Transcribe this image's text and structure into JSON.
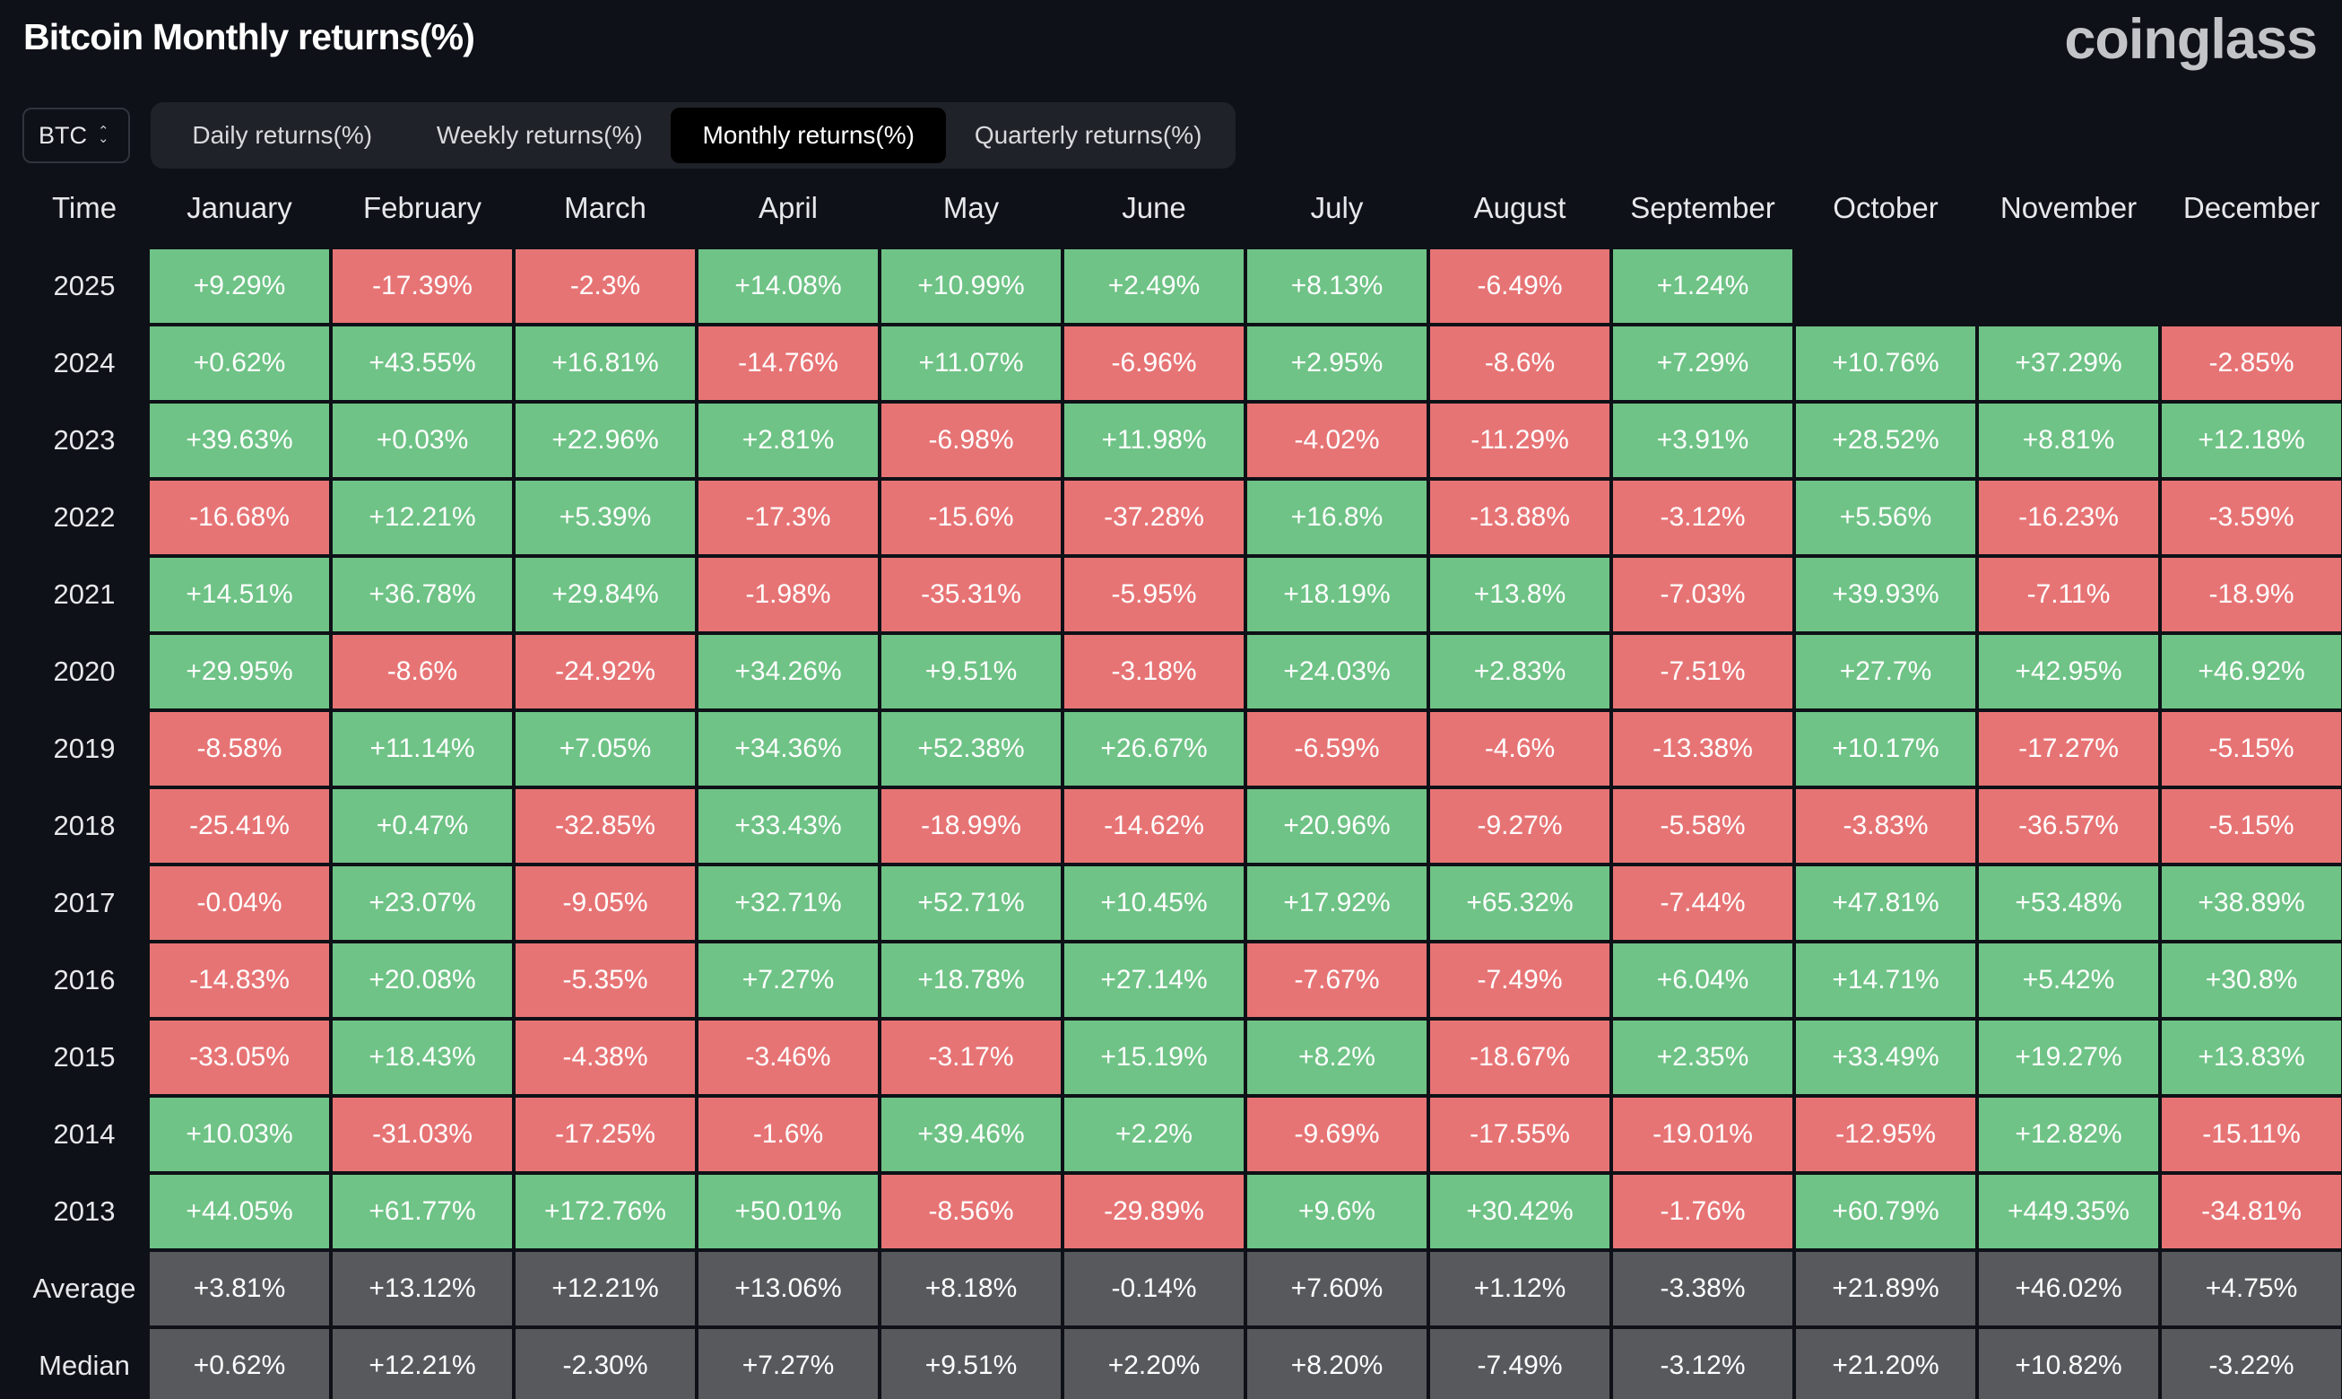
{
  "header": {
    "title": "Bitcoin Monthly returns(%)",
    "brand": "coinglass"
  },
  "coin_select": {
    "value": "BTC"
  },
  "tabs": [
    {
      "label": "Daily returns(%)",
      "active": false
    },
    {
      "label": "Weekly returns(%)",
      "active": false
    },
    {
      "label": "Monthly returns(%)",
      "active": true
    },
    {
      "label": "Quarterly returns(%)",
      "active": false
    }
  ],
  "colors": {
    "positive": "#6fc386",
    "negative": "#e77475",
    "stat": "#58595d",
    "background": "#0e1117"
  },
  "chart_data": {
    "type": "table",
    "title": "Bitcoin Monthly returns(%)",
    "row_header": "Time",
    "columns": [
      "January",
      "February",
      "March",
      "April",
      "May",
      "June",
      "July",
      "August",
      "September",
      "October",
      "November",
      "December"
    ],
    "rows": [
      {
        "label": "2025",
        "values": [
          "+9.29%",
          "-17.39%",
          "-2.3%",
          "+14.08%",
          "+10.99%",
          "+2.49%",
          "+8.13%",
          "-6.49%",
          "+1.24%",
          null,
          null,
          null
        ]
      },
      {
        "label": "2024",
        "values": [
          "+0.62%",
          "+43.55%",
          "+16.81%",
          "-14.76%",
          "+11.07%",
          "-6.96%",
          "+2.95%",
          "-8.6%",
          "+7.29%",
          "+10.76%",
          "+37.29%",
          "-2.85%"
        ]
      },
      {
        "label": "2023",
        "values": [
          "+39.63%",
          "+0.03%",
          "+22.96%",
          "+2.81%",
          "-6.98%",
          "+11.98%",
          "-4.02%",
          "-11.29%",
          "+3.91%",
          "+28.52%",
          "+8.81%",
          "+12.18%"
        ]
      },
      {
        "label": "2022",
        "values": [
          "-16.68%",
          "+12.21%",
          "+5.39%",
          "-17.3%",
          "-15.6%",
          "-37.28%",
          "+16.8%",
          "-13.88%",
          "-3.12%",
          "+5.56%",
          "-16.23%",
          "-3.59%"
        ]
      },
      {
        "label": "2021",
        "values": [
          "+14.51%",
          "+36.78%",
          "+29.84%",
          "-1.98%",
          "-35.31%",
          "-5.95%",
          "+18.19%",
          "+13.8%",
          "-7.03%",
          "+39.93%",
          "-7.11%",
          "-18.9%"
        ]
      },
      {
        "label": "2020",
        "values": [
          "+29.95%",
          "-8.6%",
          "-24.92%",
          "+34.26%",
          "+9.51%",
          "-3.18%",
          "+24.03%",
          "+2.83%",
          "-7.51%",
          "+27.7%",
          "+42.95%",
          "+46.92%"
        ]
      },
      {
        "label": "2019",
        "values": [
          "-8.58%",
          "+11.14%",
          "+7.05%",
          "+34.36%",
          "+52.38%",
          "+26.67%",
          "-6.59%",
          "-4.6%",
          "-13.38%",
          "+10.17%",
          "-17.27%",
          "-5.15%"
        ]
      },
      {
        "label": "2018",
        "values": [
          "-25.41%",
          "+0.47%",
          "-32.85%",
          "+33.43%",
          "-18.99%",
          "-14.62%",
          "+20.96%",
          "-9.27%",
          "-5.58%",
          "-3.83%",
          "-36.57%",
          "-5.15%"
        ]
      },
      {
        "label": "2017",
        "values": [
          "-0.04%",
          "+23.07%",
          "-9.05%",
          "+32.71%",
          "+52.71%",
          "+10.45%",
          "+17.92%",
          "+65.32%",
          "-7.44%",
          "+47.81%",
          "+53.48%",
          "+38.89%"
        ]
      },
      {
        "label": "2016",
        "values": [
          "-14.83%",
          "+20.08%",
          "-5.35%",
          "+7.27%",
          "+18.78%",
          "+27.14%",
          "-7.67%",
          "-7.49%",
          "+6.04%",
          "+14.71%",
          "+5.42%",
          "+30.8%"
        ]
      },
      {
        "label": "2015",
        "values": [
          "-33.05%",
          "+18.43%",
          "-4.38%",
          "-3.46%",
          "-3.17%",
          "+15.19%",
          "+8.2%",
          "-18.67%",
          "+2.35%",
          "+33.49%",
          "+19.27%",
          "+13.83%"
        ]
      },
      {
        "label": "2014",
        "values": [
          "+10.03%",
          "-31.03%",
          "-17.25%",
          "-1.6%",
          "+39.46%",
          "+2.2%",
          "-9.69%",
          "-17.55%",
          "-19.01%",
          "-12.95%",
          "+12.82%",
          "-15.11%"
        ]
      },
      {
        "label": "2013",
        "values": [
          "+44.05%",
          "+61.77%",
          "+172.76%",
          "+50.01%",
          "-8.56%",
          "-29.89%",
          "+9.6%",
          "+30.42%",
          "-1.76%",
          "+60.79%",
          "+449.35%",
          "-34.81%"
        ]
      }
    ],
    "summary_rows": [
      {
        "label": "Average",
        "values": [
          "+3.81%",
          "+13.12%",
          "+12.21%",
          "+13.06%",
          "+8.18%",
          "-0.14%",
          "+7.60%",
          "+1.12%",
          "-3.38%",
          "+21.89%",
          "+46.02%",
          "+4.75%"
        ]
      },
      {
        "label": "Median",
        "values": [
          "+0.62%",
          "+12.21%",
          "-2.30%",
          "+7.27%",
          "+9.51%",
          "+2.20%",
          "+8.20%",
          "-7.49%",
          "-3.12%",
          "+21.20%",
          "+10.82%",
          "-3.22%"
        ]
      }
    ]
  }
}
